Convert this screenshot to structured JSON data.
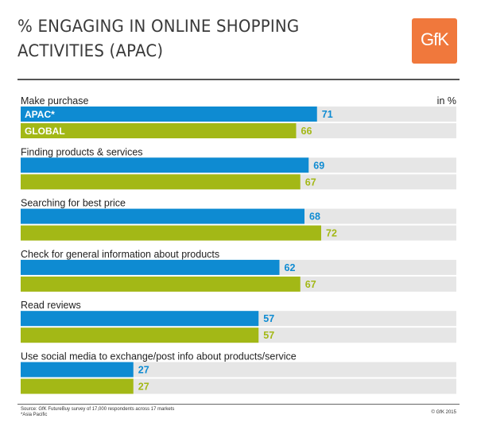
{
  "title_line1": "% ENGAGING IN ONLINE SHOPPING",
  "title_line2": "ACTIVITIES (APAC)",
  "logo_text": "GfK",
  "unit_label": "in %",
  "source_line1": "Source: GfK FutureBuy survey of 17,000 respondents across 17 markets",
  "source_line2": "*Asia Pacific",
  "copyright": "© GfK 2015",
  "colors": {
    "apac": "#0e8bd2",
    "global": "#a3b816",
    "track": "#e6e6e6",
    "brand": "#f0783c"
  },
  "chart_data": {
    "type": "bar",
    "orientation": "horizontal",
    "categories": [
      "Make purchase",
      "Finding products & services",
      "Searching for best price",
      "Check for general information about products",
      "Read reviews",
      "Use social media to exchange/post info about products/service"
    ],
    "series": [
      {
        "name": "APAC*",
        "values": [
          71,
          69,
          68,
          62,
          57,
          27
        ]
      },
      {
        "name": "GLOBAL",
        "values": [
          66,
          67,
          72,
          67,
          57,
          27
        ]
      }
    ],
    "xlim": [
      0,
      100
    ]
  }
}
